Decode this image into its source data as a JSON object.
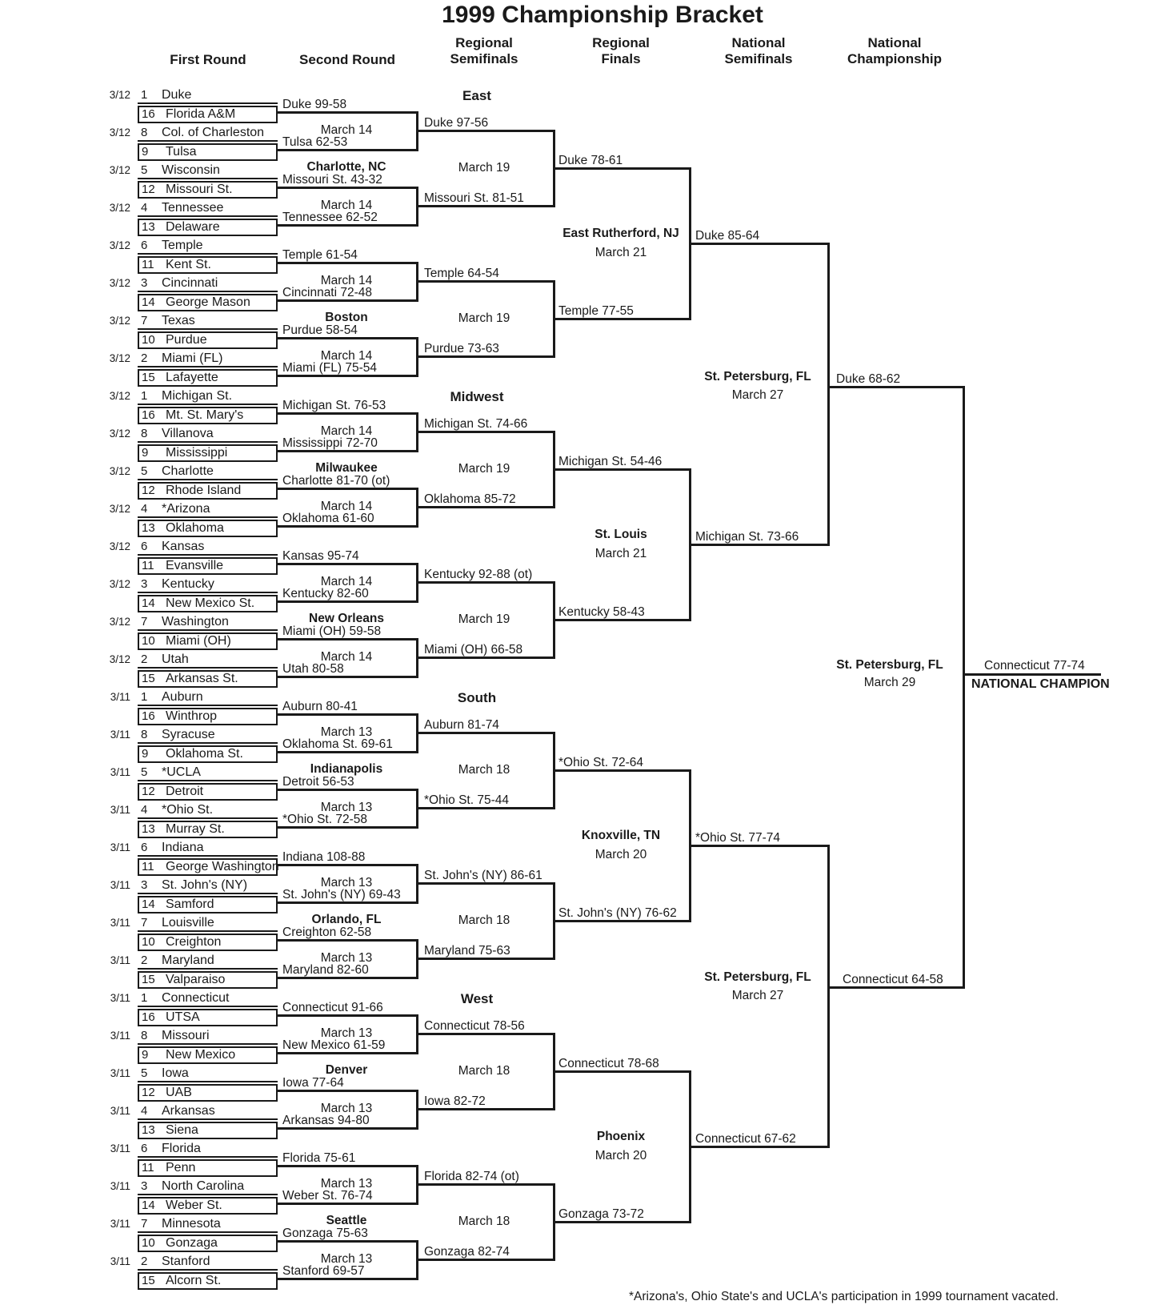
{
  "title": "1999 Championship Bracket",
  "columns": [
    [
      "First Round"
    ],
    [
      "Second Round"
    ],
    [
      "Regional",
      "Semifinals"
    ],
    [
      "Regional",
      "Finals"
    ],
    [
      "National",
      "Semifinals"
    ],
    [
      "National",
      "Championship"
    ]
  ],
  "footnote": "*Arizona's, Ohio State's and UCLA's participation in 1999 tournament vacated.",
  "line_color": "#1a1a1a",
  "regions": [
    {
      "name": "East",
      "first_round_date": "3/12",
      "matchups": [
        {
          "seed_top": "1",
          "team_top": "Duke",
          "seed_bottom": "16",
          "team_bottom": "Florida A&M",
          "result": "Duke 99-58"
        },
        {
          "seed_top": "8",
          "team_top": "Col. of Charleston",
          "seed_bottom": "9",
          "team_bottom": "Tulsa",
          "result": "Tulsa 62-53"
        },
        {
          "seed_top": "5",
          "team_top": "Wisconsin",
          "seed_bottom": "12",
          "team_bottom": "Missouri St.",
          "result": "Missouri St. 43-32"
        },
        {
          "seed_top": "4",
          "team_top": "Tennessee",
          "seed_bottom": "13",
          "team_bottom": "Delaware",
          "result": "Tennessee 62-52"
        },
        {
          "seed_top": "6",
          "team_top": "Temple",
          "seed_bottom": "11",
          "team_bottom": "Kent St.",
          "result": "Temple 61-54"
        },
        {
          "seed_top": "3",
          "team_top": "Cincinnati",
          "seed_bottom": "14",
          "team_bottom": "George Mason",
          "result": "Cincinnati 72-48"
        },
        {
          "seed_top": "7",
          "team_top": "Texas",
          "seed_bottom": "10",
          "team_bottom": "Purdue",
          "result": "Purdue 58-54"
        },
        {
          "seed_top": "2",
          "team_top": "Miami (FL)",
          "seed_bottom": "15",
          "team_bottom": "Lafayette",
          "result": "Miami (FL)  75-54"
        }
      ],
      "second_round": {
        "date": "March 14",
        "sites": [
          "Charlotte, NC",
          "Boston"
        ],
        "results": [
          "Duke 97-56",
          "Missouri St. 81-51",
          "Temple 64-54",
          "Purdue 73-63"
        ]
      },
      "regional_semifinals": {
        "date": "March 19",
        "results": [
          "Duke 78-61",
          "Temple  77-55"
        ]
      },
      "regional_final": {
        "site": "East Rutherford, NJ",
        "date": "March  21",
        "result": "Duke 85-64"
      }
    },
    {
      "name": "Midwest",
      "first_round_date": "3/12",
      "matchups": [
        {
          "seed_top": "1",
          "team_top": "Michigan St.",
          "seed_bottom": "16",
          "team_bottom": "Mt. St. Mary's",
          "result": "Michigan St.  76-53"
        },
        {
          "seed_top": "8",
          "team_top": "Villanova",
          "seed_bottom": "9",
          "team_bottom": "Mississippi",
          "result": "Mississippi 72-70"
        },
        {
          "seed_top": "5",
          "team_top": "Charlotte",
          "seed_bottom": "12",
          "team_bottom": "Rhode Island",
          "result": "Charlotte 81-70 (ot)"
        },
        {
          "seed_top": "4",
          "team_top": "*Arizona",
          "seed_bottom": "13",
          "team_bottom": "Oklahoma",
          "result": "Oklahoma 61-60"
        },
        {
          "seed_top": "6",
          "team_top": "Kansas",
          "seed_bottom": "11",
          "team_bottom": "Evansville",
          "result": "Kansas 95-74"
        },
        {
          "seed_top": "3",
          "team_top": "Kentucky",
          "seed_bottom": "14",
          "team_bottom": "New Mexico St.",
          "result": "Kentucky 82-60"
        },
        {
          "seed_top": "7",
          "team_top": "Washington",
          "seed_bottom": "10",
          "team_bottom": "Miami (OH)",
          "result": "Miami (OH)  59-58"
        },
        {
          "seed_top": "2",
          "team_top": "Utah",
          "seed_bottom": "15",
          "team_bottom": "Arkansas St.",
          "result": "Utah 80-58"
        }
      ],
      "second_round": {
        "date": "March 14",
        "sites": [
          "Milwaukee",
          "New Orleans"
        ],
        "results": [
          "Michigan St.  74-66",
          "Oklahoma  85-72",
          "Kentucky 92-88 (ot)",
          "Miami (OH)  66-58"
        ]
      },
      "regional_semifinals": {
        "date": "March 19",
        "results": [
          "Michigan St.  54-46",
          "Kentucky 58-43"
        ]
      },
      "regional_final": {
        "site": "St. Louis",
        "date": "March  21",
        "result": "Michigan St.  73-66"
      }
    },
    {
      "name": "South",
      "first_round_date": "3/11",
      "matchups": [
        {
          "seed_top": "1",
          "team_top": "Auburn",
          "seed_bottom": "16",
          "team_bottom": "Winthrop",
          "result": "Auburn 80-41"
        },
        {
          "seed_top": "8",
          "team_top": "Syracuse",
          "seed_bottom": "9",
          "team_bottom": "Oklahoma St.",
          "result": "Oklahoma St. 69-61"
        },
        {
          "seed_top": "5",
          "team_top": "*UCLA",
          "seed_bottom": "12",
          "team_bottom": "Detroit",
          "result": "Detroit 56-53"
        },
        {
          "seed_top": "4",
          "team_top": "*Ohio St.",
          "seed_bottom": "13",
          "team_bottom": "Murray St.",
          "result": "*Ohio St. 72-58"
        },
        {
          "seed_top": "6",
          "team_top": "Indiana",
          "seed_bottom": "11",
          "team_bottom": "George Washington",
          "result": "Indiana 108-88"
        },
        {
          "seed_top": "3",
          "team_top": "St. John's (NY)",
          "seed_bottom": "14",
          "team_bottom": "Samford",
          "result": "St. John's (NY) 69-43"
        },
        {
          "seed_top": "7",
          "team_top": "Louisville",
          "seed_bottom": "10",
          "team_bottom": "Creighton",
          "result": "Creighton 62-58"
        },
        {
          "seed_top": "2",
          "team_top": "Maryland",
          "seed_bottom": "15",
          "team_bottom": "Valparaiso",
          "result": "Maryland 82-60"
        }
      ],
      "second_round": {
        "date": "March 13",
        "sites": [
          "Indianapolis",
          "Orlando, FL"
        ],
        "results": [
          "Auburn 81-74",
          "*Ohio St. 75-44",
          "St. John's (NY) 86-61",
          "Maryland 75-63"
        ]
      },
      "regional_semifinals": {
        "date": "March 18",
        "results": [
          "*Ohio St. 72-64",
          "St. John's (NY)  76-62"
        ]
      },
      "regional_final": {
        "site": "Knoxville, TN",
        "date": "March  20",
        "result": "*Ohio St. 77-74"
      }
    },
    {
      "name": "West",
      "first_round_date": "3/11",
      "matchups": [
        {
          "seed_top": "1",
          "team_top": "Connecticut",
          "seed_bottom": "16",
          "team_bottom": "UTSA",
          "result": "Connecticut 91-66"
        },
        {
          "seed_top": "8",
          "team_top": "Missouri",
          "seed_bottom": "9",
          "team_bottom": "New Mexico",
          "result": "New Mexico 61-59"
        },
        {
          "seed_top": "5",
          "team_top": "Iowa",
          "seed_bottom": "12",
          "team_bottom": "UAB",
          "result": "Iowa 77-64"
        },
        {
          "seed_top": "4",
          "team_top": "Arkansas",
          "seed_bottom": "13",
          "team_bottom": "Siena",
          "result": "Arkansas 94-80"
        },
        {
          "seed_top": "6",
          "team_top": "Florida",
          "seed_bottom": "11",
          "team_bottom": "Penn",
          "result": "Florida 75-61"
        },
        {
          "seed_top": "3",
          "team_top": "North Carolina",
          "seed_bottom": "14",
          "team_bottom": "Weber St.",
          "result": "Weber St. 76-74"
        },
        {
          "seed_top": "7",
          "team_top": "Minnesota",
          "seed_bottom": "10",
          "team_bottom": "Gonzaga",
          "result": "Gonzaga 75-63"
        },
        {
          "seed_top": "2",
          "team_top": "Stanford",
          "seed_bottom": "15",
          "team_bottom": "Alcorn St.",
          "result": "Stanford 69-57"
        }
      ],
      "second_round": {
        "date": "March 13",
        "sites": [
          "Denver",
          "Seattle"
        ],
        "results": [
          "Connecticut 78-56",
          "Iowa 82-72",
          "Florida 82-74 (ot)",
          "Gonzaga 82-74"
        ]
      },
      "regional_semifinals": {
        "date": "March 18",
        "results": [
          "Connecticut 78-68",
          "Gonzaga 73-72"
        ]
      },
      "regional_final": {
        "site": "Phoenix",
        "date": "March  20",
        "result": "Connecticut  67-62"
      }
    }
  ],
  "final_four": {
    "semifinals": [
      {
        "site": "St. Petersburg, FL",
        "date": "March 27",
        "result": "Duke 68-62"
      },
      {
        "site": "St. Petersburg, FL",
        "date": "March 27",
        "result": "Connecticut 64-58"
      }
    ],
    "championship": {
      "site": "St. Petersburg, FL",
      "date": "March 29",
      "result": "Connecticut 77-74",
      "champion_label": "NATIONAL CHAMPION"
    }
  }
}
